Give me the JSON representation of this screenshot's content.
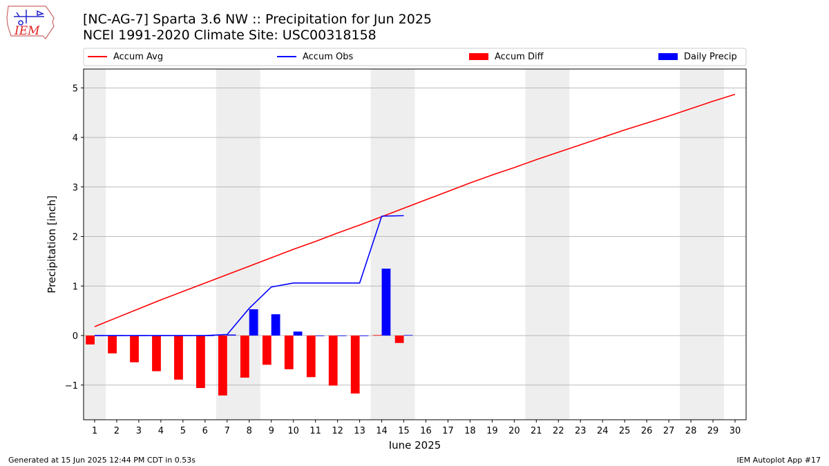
{
  "header": {
    "title_line1": "[NC-AG-7] Sparta 3.6 NW :: Precipitation for Jun 2025",
    "title_line2": "NCEI 1991-2020 Climate Site: USC00318158",
    "logo_text": "IEM"
  },
  "footer": {
    "left": "Generated at 15 Jun 2025 12:44 PM CDT in 0.53s",
    "right": "IEM Autoplot App #17"
  },
  "colors": {
    "avg": "#ff0000",
    "obs": "#0000ff",
    "diff": "#ff0000",
    "daily": "#0000ff",
    "weekend_shade": "#eeeeee",
    "grid": "#b0b0b0"
  },
  "chart_data": {
    "type": "bar",
    "xlabel": "June 2025",
    "ylabel": "Precipitation [inch]",
    "xlim": [
      0.5,
      30.5
    ],
    "ylim": [
      -1.7,
      5.38
    ],
    "yticks": [
      -1,
      0,
      1,
      2,
      3,
      4,
      5
    ],
    "ytick_labels": [
      "−1",
      "0",
      "1",
      "2",
      "3",
      "4",
      "5"
    ],
    "days": [
      1,
      2,
      3,
      4,
      5,
      6,
      7,
      8,
      9,
      10,
      11,
      12,
      13,
      14,
      15,
      16,
      17,
      18,
      19,
      20,
      21,
      22,
      23,
      24,
      25,
      26,
      27,
      28,
      29,
      30
    ],
    "weekend_spans": [
      [
        0.5,
        1.5
      ],
      [
        6.5,
        8.5
      ],
      [
        13.5,
        15.5
      ],
      [
        20.5,
        22.5
      ],
      [
        27.5,
        29.5
      ]
    ],
    "grid": "horizontal",
    "legend_placement": "top",
    "legend": [
      {
        "label": "Accum Avg",
        "kind": "line",
        "series": "avg"
      },
      {
        "label": "Accum Obs",
        "kind": "line",
        "series": "obs"
      },
      {
        "label": "Accum Diff",
        "kind": "bar",
        "series": "diff"
      },
      {
        "label": "Daily Precip",
        "kind": "bar",
        "series": "daily"
      }
    ],
    "series": [
      {
        "name": "Accum Avg",
        "type": "line",
        "x": [
          1,
          2,
          3,
          4,
          5,
          6,
          7,
          8,
          9,
          10,
          11,
          12,
          13,
          14,
          15,
          16,
          17,
          18,
          19,
          20,
          21,
          22,
          23,
          24,
          25,
          26,
          27,
          28,
          29,
          30
        ],
        "values": [
          0.18,
          0.36,
          0.54,
          0.72,
          0.89,
          1.06,
          1.23,
          1.4,
          1.57,
          1.74,
          1.9,
          2.07,
          2.23,
          2.4,
          2.57,
          2.74,
          2.91,
          3.08,
          3.24,
          3.39,
          3.55,
          3.7,
          3.85,
          4.0,
          4.15,
          4.29,
          4.43,
          4.58,
          4.73,
          4.87
        ]
      },
      {
        "name": "Accum Obs",
        "type": "line",
        "x": [
          1,
          2,
          3,
          4,
          5,
          6,
          7,
          8,
          9,
          10,
          11,
          12,
          13,
          14,
          15
        ],
        "values": [
          0.0,
          0.0,
          0.0,
          0.0,
          0.0,
          0.0,
          0.02,
          0.55,
          0.98,
          1.06,
          1.06,
          1.06,
          1.06,
          2.41,
          2.42
        ]
      },
      {
        "name": "Accum Diff",
        "type": "bar",
        "x": [
          1,
          2,
          3,
          4,
          5,
          6,
          7,
          8,
          9,
          10,
          11,
          12,
          13,
          14,
          15
        ],
        "values": [
          -0.18,
          -0.36,
          -0.54,
          -0.72,
          -0.89,
          -1.06,
          -1.21,
          -0.85,
          -0.59,
          -0.68,
          -0.84,
          -1.01,
          -1.17,
          0.01,
          -0.15
        ]
      },
      {
        "name": "Daily Precip",
        "type": "bar",
        "x": [
          1,
          2,
          3,
          4,
          5,
          6,
          7,
          8,
          9,
          10,
          11,
          12,
          13,
          14,
          15
        ],
        "values": [
          0.0,
          0.0,
          0.0,
          0.0,
          0.0,
          0.0,
          0.02,
          0.53,
          0.43,
          0.08,
          0.0,
          0.0,
          0.0,
          1.35,
          0.01
        ]
      }
    ]
  }
}
